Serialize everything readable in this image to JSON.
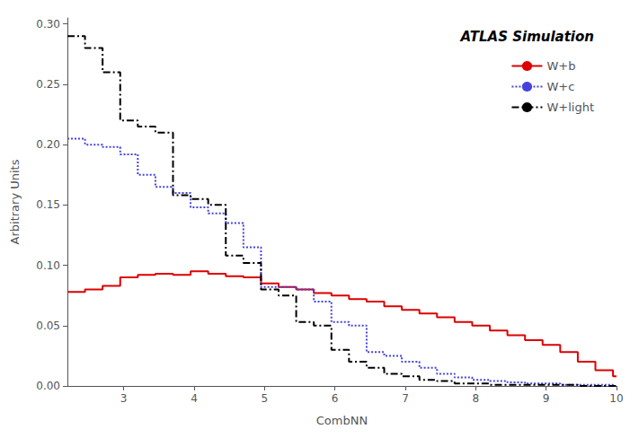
{
  "chart_data": {
    "type": "histogram",
    "annotations": [
      "ATLAS Simulation"
    ],
    "xlabel": "CombNN",
    "ylabel": "Arbitrary Units",
    "xlim": [
      2.2,
      10.0
    ],
    "ylim": [
      0.0,
      0.305
    ],
    "xticks": [
      3,
      4,
      5,
      6,
      7,
      8,
      9,
      10
    ],
    "yticks": [
      {
        "value": 0.0,
        "label": "0.00"
      },
      0.05,
      {
        "value": 0.1,
        "label": "0.10"
      },
      0.15,
      {
        "value": 0.2,
        "label": "0.20"
      },
      0.25,
      {
        "value": 0.3,
        "label": "0.30"
      }
    ],
    "bins": [
      2.2,
      2.45,
      2.7,
      2.95,
      3.2,
      3.45,
      3.7,
      3.95,
      4.2,
      4.45,
      4.7,
      4.95,
      5.2,
      5.45,
      5.7,
      5.95,
      6.2,
      6.45,
      6.7,
      6.95,
      7.2,
      7.45,
      7.7,
      7.95,
      8.2,
      8.45,
      8.7,
      8.95,
      9.2,
      9.45,
      9.7,
      9.95,
      10.0
    ],
    "series": [
      {
        "name": "W+b",
        "color": "#dd0000",
        "line_style": "solid",
        "values": [
          0.078,
          0.08,
          0.083,
          0.09,
          0.092,
          0.093,
          0.092,
          0.095,
          0.093,
          0.091,
          0.09,
          0.085,
          0.082,
          0.08,
          0.077,
          0.075,
          0.072,
          0.07,
          0.066,
          0.063,
          0.06,
          0.057,
          0.053,
          0.05,
          0.046,
          0.042,
          0.038,
          0.034,
          0.028,
          0.02,
          0.013,
          0.008
        ]
      },
      {
        "name": "W+c",
        "color": "#4444dd",
        "line_style": "dotted",
        "values": [
          0.205,
          0.2,
          0.198,
          0.192,
          0.175,
          0.165,
          0.16,
          0.148,
          0.143,
          0.135,
          0.115,
          0.082,
          0.082,
          0.08,
          0.07,
          0.053,
          0.05,
          0.028,
          0.025,
          0.02,
          0.015,
          0.01,
          0.007,
          0.005,
          0.004,
          0.003,
          0.002,
          0.002,
          0.001,
          0.001,
          0.001,
          0.0
        ]
      },
      {
        "name": "W+light",
        "color": "#000000",
        "line_style": "dashdot",
        "values": [
          0.29,
          0.28,
          0.26,
          0.22,
          0.215,
          0.21,
          0.158,
          0.155,
          0.15,
          0.108,
          0.102,
          0.08,
          0.075,
          0.053,
          0.05,
          0.03,
          0.02,
          0.015,
          0.01,
          0.008,
          0.005,
          0.004,
          0.002,
          0.002,
          0.001,
          0.001,
          0.001,
          0.001,
          0.001,
          0.0,
          0.0,
          0.0
        ]
      }
    ],
    "legend": "upper right",
    "grid": false
  }
}
